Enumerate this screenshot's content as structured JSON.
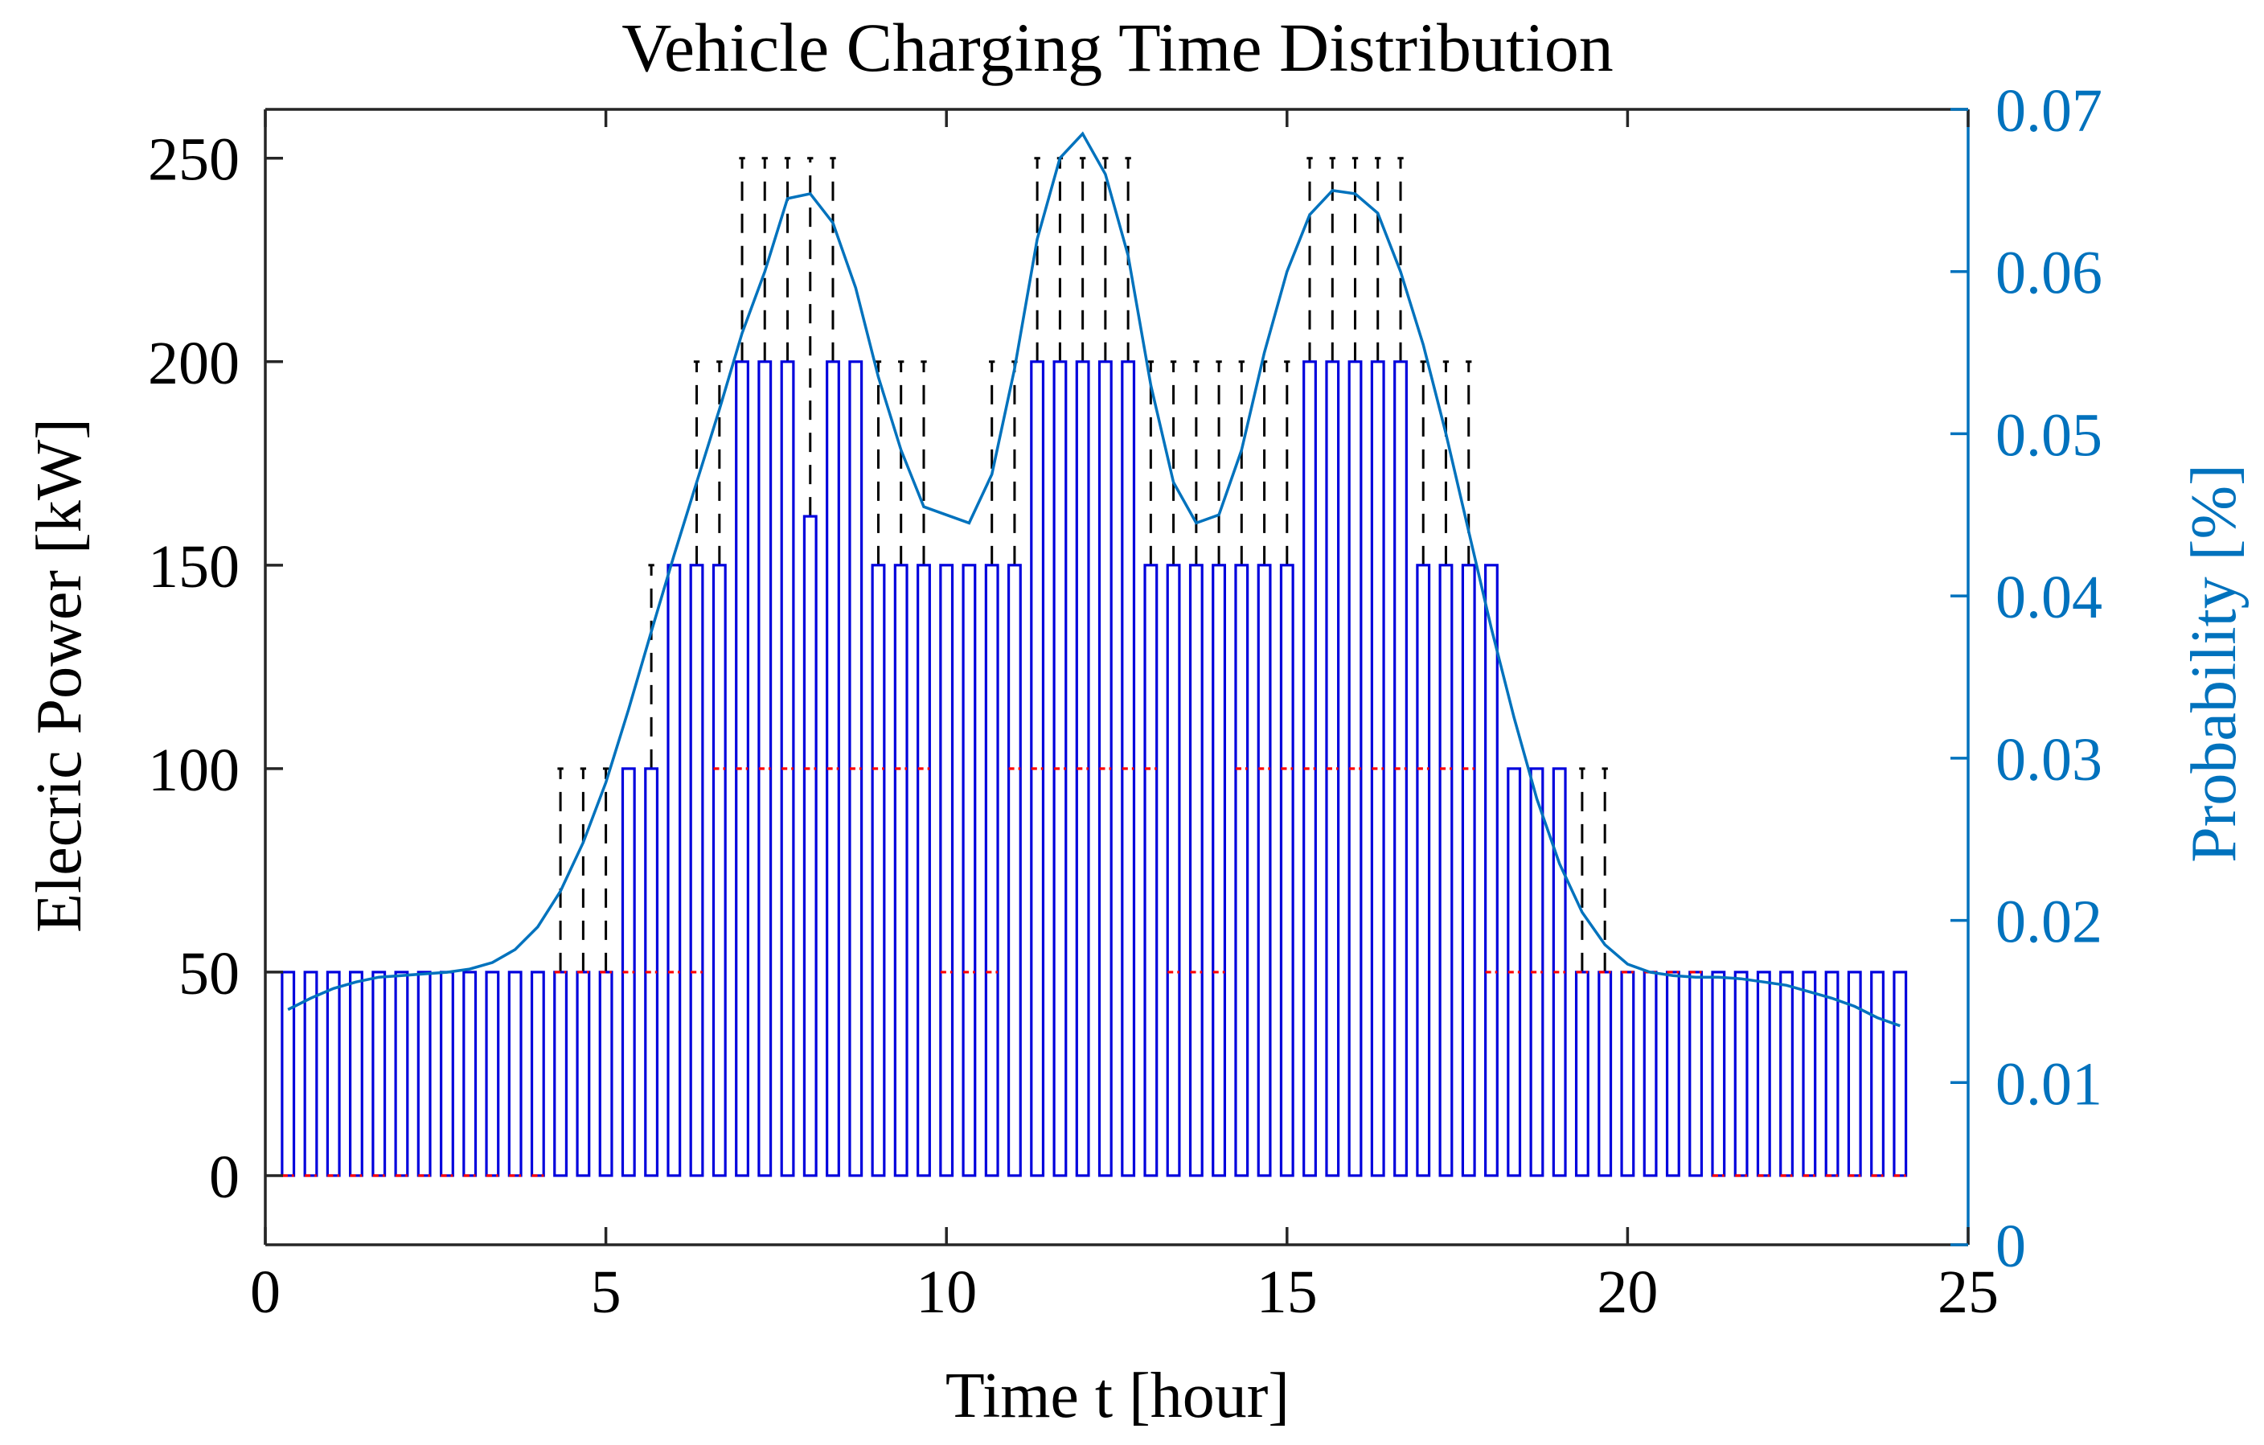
{
  "chart_data": {
    "type": "box",
    "title": "Vehicle Charging Time Distribution",
    "xlabel": "Time t [hour]",
    "ylabel": "Elecric Power [kW]",
    "ylabel_right": "Probability [%]",
    "xlim": [
      0,
      25
    ],
    "ylim": [
      -17,
      262
    ],
    "ylim_right": [
      0,
      0.07
    ],
    "xticks": [
      "0",
      "5",
      "10",
      "15",
      "20",
      "25"
    ],
    "yticks": [
      "0",
      "50",
      "100",
      "150",
      "200",
      "250"
    ],
    "yticks_right": [
      "0",
      "0.01",
      "0.02",
      "0.03",
      "0.04",
      "0.05",
      "0.06",
      "0.07"
    ],
    "grid": false,
    "legend": "none",
    "colors": {
      "box": "#0000dd",
      "whisker": "#000000",
      "median": "#ff0000",
      "curve": "#0072bd",
      "right_axis": "#0072bd"
    },
    "box_series": {
      "x": [
        0.333,
        0.667,
        1.0,
        1.333,
        1.667,
        2.0,
        2.333,
        2.667,
        3.0,
        3.333,
        3.667,
        4.0,
        4.333,
        4.667,
        5.0,
        5.333,
        5.667,
        6.0,
        6.333,
        6.667,
        7.0,
        7.333,
        7.667,
        8.0,
        8.333,
        8.667,
        9.0,
        9.333,
        9.667,
        10.0,
        10.333,
        10.667,
        11.0,
        11.333,
        11.667,
        12.0,
        12.333,
        12.667,
        13.0,
        13.333,
        13.667,
        14.0,
        14.333,
        14.667,
        15.0,
        15.333,
        15.667,
        16.0,
        16.333,
        16.667,
        17.0,
        17.333,
        17.667,
        18.0,
        18.333,
        18.667,
        19.0,
        19.333,
        19.667,
        20.0,
        20.333,
        20.667,
        21.0,
        21.333,
        21.667,
        22.0,
        22.333,
        22.667,
        23.0,
        23.333,
        23.667,
        24.0
      ],
      "q1": [
        0,
        0,
        0,
        0,
        0,
        0,
        0,
        0,
        0,
        0,
        0,
        0,
        0,
        0,
        0,
        0,
        0,
        0,
        0,
        0,
        0,
        0,
        0,
        0,
        0,
        0,
        0,
        0,
        0,
        0,
        0,
        0,
        0,
        0,
        0,
        0,
        0,
        0,
        0,
        0,
        0,
        0,
        0,
        0,
        0,
        0,
        0,
        0,
        0,
        0,
        0,
        0,
        0,
        0,
        0,
        0,
        0,
        0,
        0,
        0,
        0,
        0,
        0,
        0,
        0,
        0,
        0,
        0,
        0,
        0,
        0,
        0
      ],
      "q3": [
        50,
        50,
        50,
        50,
        50,
        50,
        50,
        50,
        50,
        50,
        50,
        50,
        50,
        50,
        50,
        100,
        100,
        150,
        150,
        150,
        200,
        200,
        200,
        162,
        200,
        200,
        150,
        150,
        150,
        150,
        150,
        150,
        150,
        200,
        200,
        200,
        200,
        200,
        150,
        150,
        150,
        150,
        150,
        150,
        150,
        200,
        200,
        200,
        200,
        200,
        150,
        150,
        150,
        150,
        100,
        100,
        100,
        50,
        50,
        50,
        50,
        50,
        50,
        50,
        50,
        50,
        50,
        50,
        50,
        50,
        50,
        50
      ],
      "median": [
        0,
        0,
        0,
        0,
        0,
        0,
        0,
        0,
        0,
        0,
        0,
        0,
        50,
        50,
        50,
        50,
        50,
        50,
        50,
        100,
        100,
        100,
        100,
        100,
        100,
        100,
        100,
        100,
        100,
        50,
        50,
        50,
        100,
        100,
        100,
        100,
        100,
        100,
        100,
        50,
        50,
        50,
        100,
        100,
        100,
        100,
        100,
        100,
        100,
        100,
        100,
        100,
        100,
        50,
        50,
        50,
        50,
        50,
        50,
        50,
        50,
        50,
        50,
        0,
        0,
        0,
        0,
        0,
        0,
        0,
        0,
        0
      ],
      "whisker_high": [
        50,
        50,
        50,
        50,
        50,
        50,
        50,
        50,
        50,
        50,
        50,
        50,
        100,
        100,
        100,
        100,
        150,
        150,
        200,
        200,
        250,
        250,
        250,
        250,
        250,
        200,
        200,
        200,
        200,
        150,
        150,
        200,
        200,
        250,
        250,
        250,
        250,
        250,
        200,
        200,
        200,
        200,
        200,
        200,
        200,
        250,
        250,
        250,
        250,
        250,
        200,
        200,
        200,
        150,
        100,
        100,
        100,
        100,
        100,
        50,
        50,
        50,
        50,
        50,
        50,
        50,
        50,
        50,
        50,
        50,
        50,
        50
      ],
      "whisker_low": [
        0,
        0,
        0,
        0,
        0,
        0,
        0,
        0,
        0,
        0,
        0,
        0,
        0,
        0,
        0,
        0,
        0,
        0,
        0,
        0,
        0,
        0,
        0,
        0,
        0,
        0,
        0,
        0,
        0,
        0,
        0,
        0,
        0,
        0,
        0,
        0,
        0,
        0,
        0,
        0,
        0,
        0,
        0,
        0,
        0,
        0,
        0,
        0,
        0,
        0,
        0,
        0,
        0,
        0,
        0,
        0,
        0,
        0,
        0,
        0,
        0,
        0,
        0,
        0,
        0,
        0,
        0,
        0,
        0,
        0,
        0,
        0
      ]
    },
    "probability_curve": {
      "x": [
        0.333,
        0.667,
        1.0,
        1.333,
        1.667,
        2.0,
        2.333,
        2.667,
        3.0,
        3.333,
        3.667,
        4.0,
        4.333,
        4.667,
        5.0,
        5.333,
        5.667,
        6.0,
        6.333,
        6.667,
        7.0,
        7.333,
        7.667,
        8.0,
        8.333,
        8.667,
        9.0,
        9.333,
        9.667,
        10.0,
        10.333,
        10.667,
        11.0,
        11.333,
        11.667,
        12.0,
        12.333,
        12.667,
        13.0,
        13.333,
        13.667,
        14.0,
        14.333,
        14.667,
        15.0,
        15.333,
        15.667,
        16.0,
        16.333,
        16.667,
        17.0,
        17.333,
        17.667,
        18.0,
        18.333,
        18.667,
        19.0,
        19.333,
        19.667,
        20.0,
        20.333,
        20.667,
        21.0,
        21.333,
        21.667,
        22.0,
        22.333,
        22.667,
        23.0,
        23.333,
        23.667,
        24.0
      ],
      "y": [
        0.0145,
        0.0152,
        0.0158,
        0.0162,
        0.0165,
        0.0166,
        0.0167,
        0.0168,
        0.017,
        0.0174,
        0.0182,
        0.0196,
        0.0218,
        0.0248,
        0.0285,
        0.033,
        0.0378,
        0.0425,
        0.047,
        0.0515,
        0.0562,
        0.06,
        0.0645,
        0.0648,
        0.063,
        0.059,
        0.0535,
        0.049,
        0.0455,
        0.045,
        0.0445,
        0.0475,
        0.054,
        0.062,
        0.067,
        0.0685,
        0.066,
        0.061,
        0.053,
        0.047,
        0.0445,
        0.045,
        0.049,
        0.055,
        0.06,
        0.0635,
        0.065,
        0.0648,
        0.0636,
        0.06,
        0.0555,
        0.05,
        0.044,
        0.038,
        0.0325,
        0.0275,
        0.0235,
        0.0205,
        0.0185,
        0.0173,
        0.0168,
        0.0166,
        0.0165,
        0.0165,
        0.0164,
        0.0162,
        0.016,
        0.0156,
        0.0152,
        0.0147,
        0.014,
        0.0135
      ]
    }
  }
}
